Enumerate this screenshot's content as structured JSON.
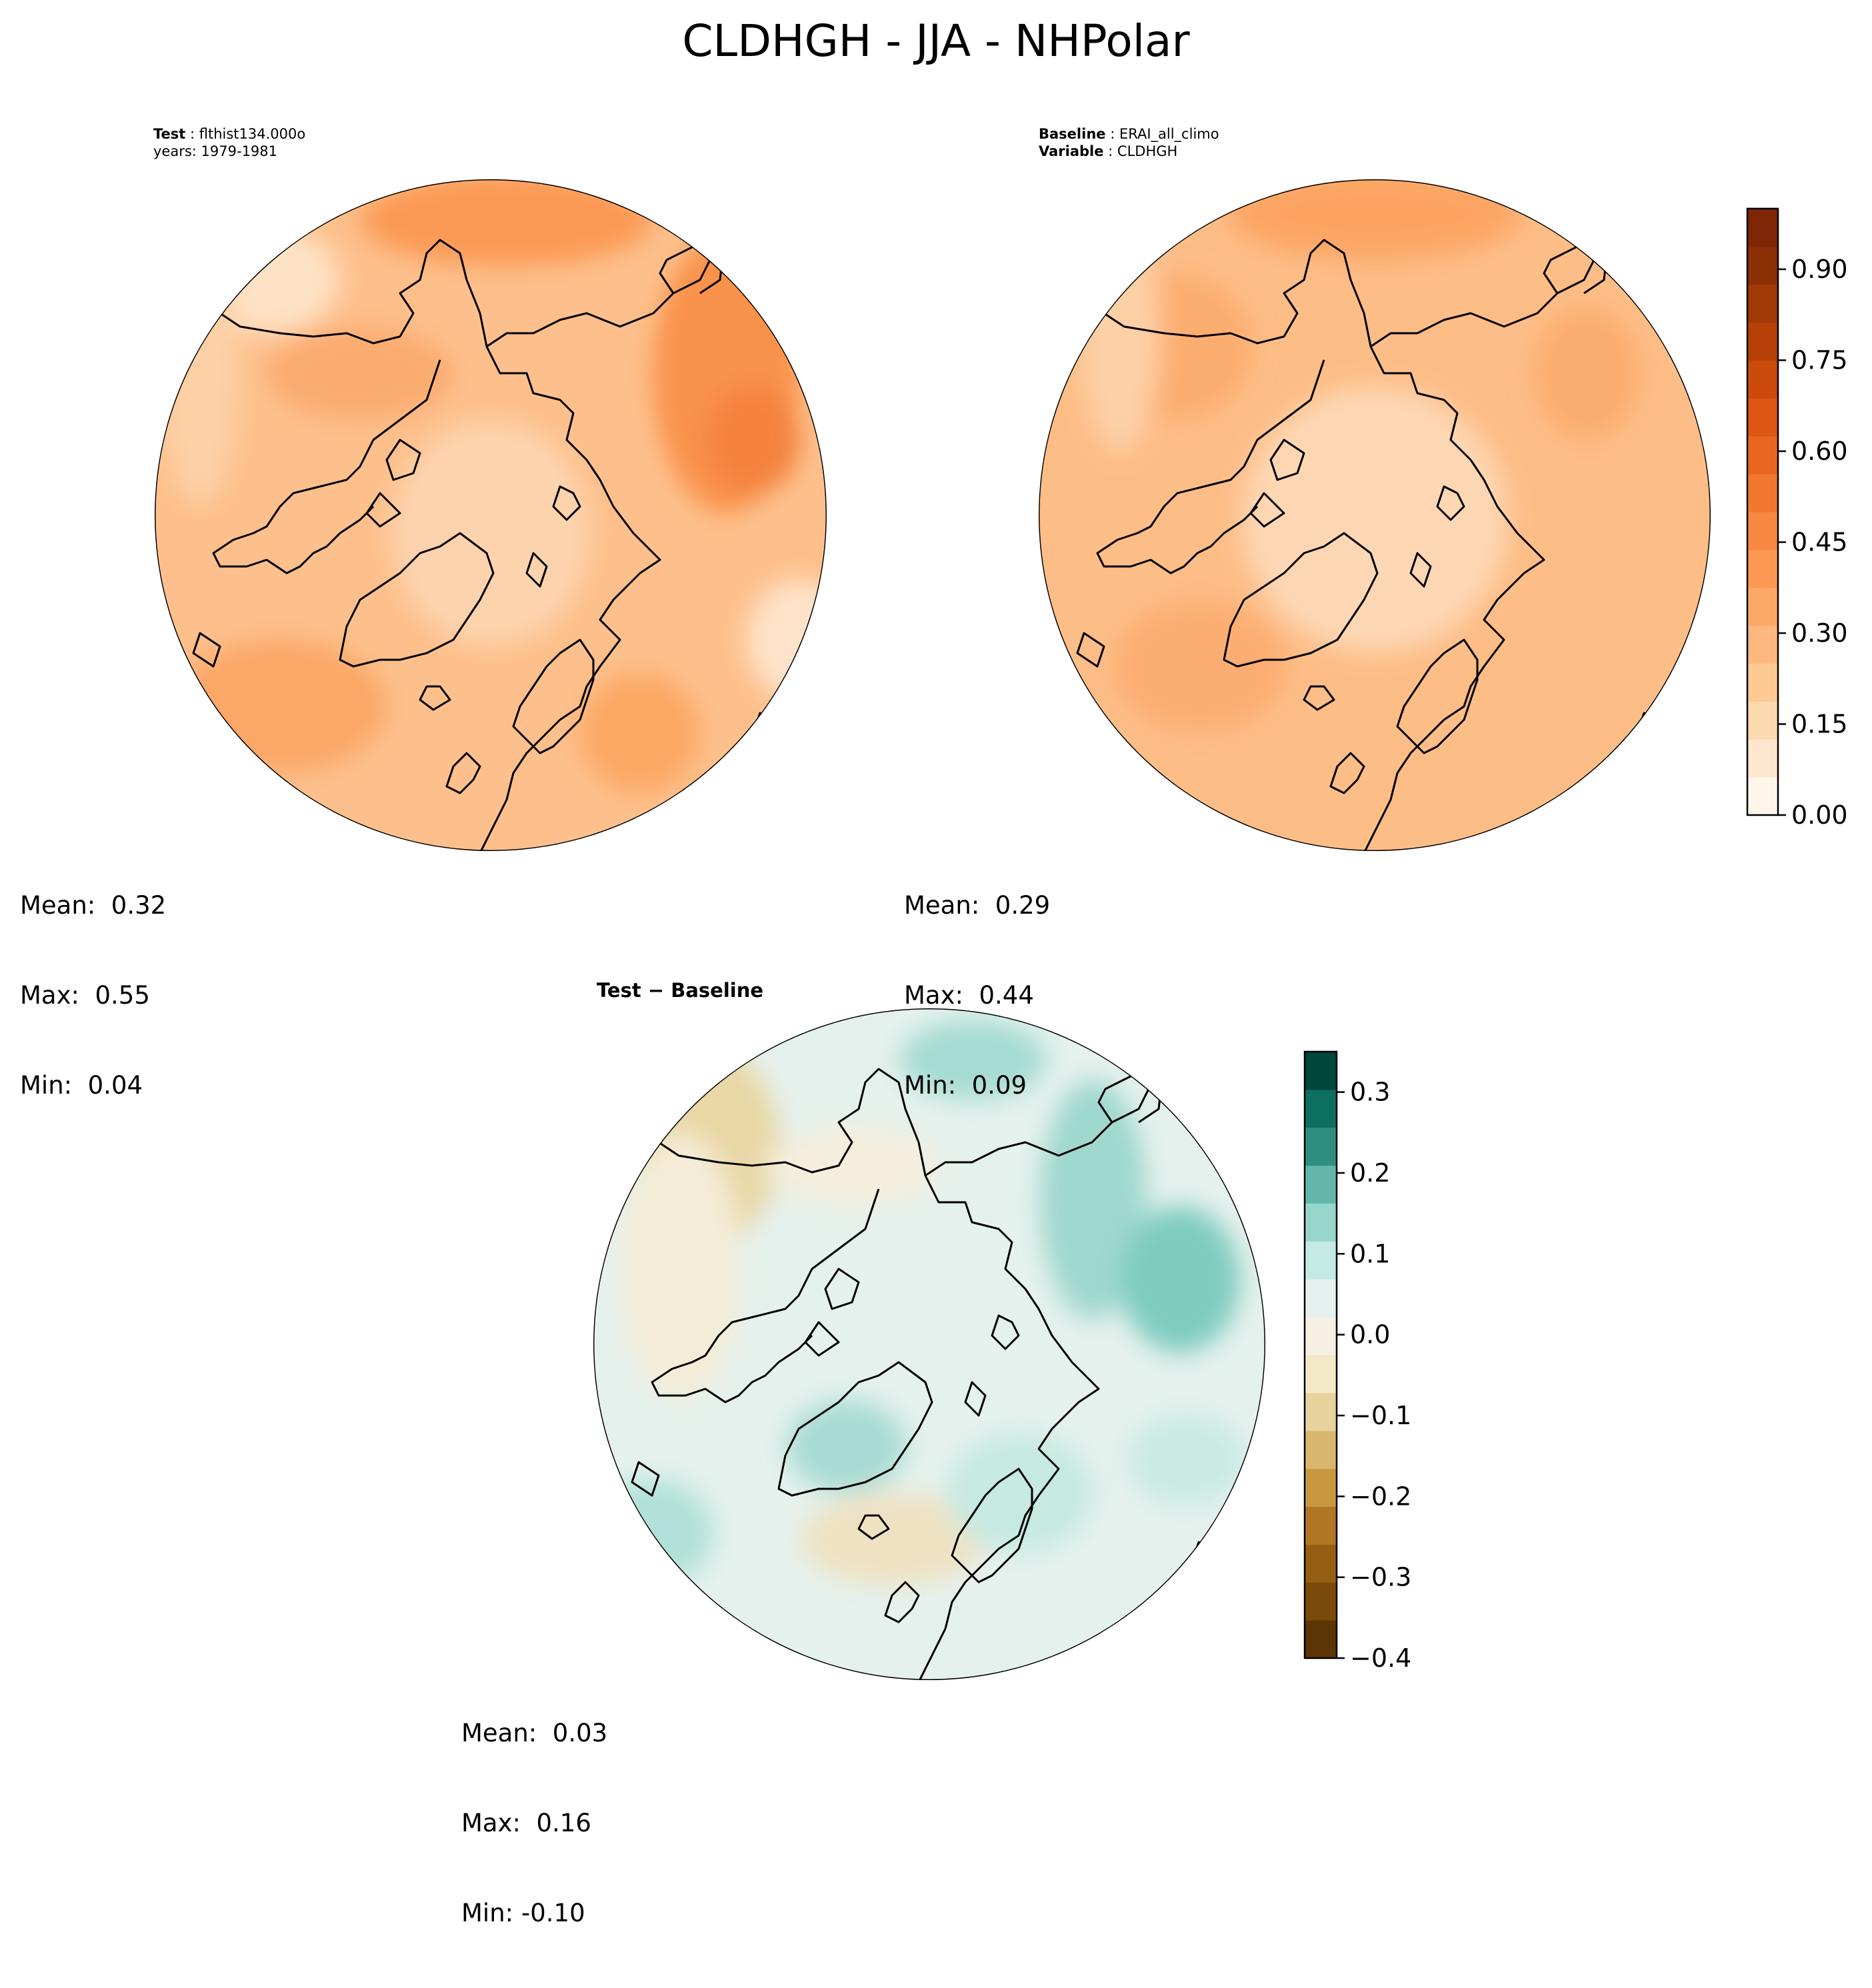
{
  "title": "CLDHGH - JJA - NHPolar",
  "test_panel": {
    "label_key": "Test",
    "label_value": "flthist134.000o",
    "years_line": "years: 1979-1981",
    "stats": {
      "mean": "Mean:  0.32",
      "max": "Max:  0.55",
      "min": "Min:  0.04"
    }
  },
  "baseline_panel": {
    "label_key": "Baseline",
    "label_value": "ERAI_all_climo",
    "variable_key": "Variable",
    "variable_value": "CLDHGH",
    "stats": {
      "mean": "Mean:  0.29",
      "max": "Max:  0.44",
      "min": "Min:  0.09"
    }
  },
  "diff_panel": {
    "label": "Test − Baseline",
    "stats": {
      "mean": "Mean:  0.03",
      "max": "Max:  0.16",
      "min": "Min: -0.10"
    }
  },
  "colorbar_main": {
    "ticks": [
      "0.00",
      "0.15",
      "0.30",
      "0.45",
      "0.60",
      "0.75",
      "0.90"
    ],
    "tick_values": [
      0.0,
      0.15,
      0.3,
      0.45,
      0.6,
      0.75,
      0.9
    ],
    "range": [
      0.0,
      1.0
    ],
    "colors": [
      "#fff5eb",
      "#fee6ce",
      "#fdd9b0",
      "#fdca94",
      "#fdb97d",
      "#fda867",
      "#fd9853",
      "#f8873f",
      "#f3782f",
      "#ea6620",
      "#dd5613",
      "#cc4a0b",
      "#b64007",
      "#a23805",
      "#8b3004",
      "#7f2704"
    ]
  },
  "colorbar_diff": {
    "ticks": [
      "−0.4",
      "−0.3",
      "−0.2",
      "−0.1",
      "0.0",
      "0.1",
      "0.2",
      "0.3"
    ],
    "tick_values": [
      -0.4,
      -0.3,
      -0.2,
      -0.1,
      0.0,
      0.1,
      0.2,
      0.3
    ],
    "range": [
      -0.4,
      0.35
    ],
    "colors": [
      "#5b3503",
      "#7a4a09",
      "#955e13",
      "#b17725",
      "#c89841",
      "#d9b66e",
      "#e8d39d",
      "#f3e8c8",
      "#f5f0e2",
      "#e4f1ee",
      "#c5e9e3",
      "#96d6cb",
      "#62b6aa",
      "#2e8e82",
      "#0d6e62",
      "#01463b"
    ]
  }
}
